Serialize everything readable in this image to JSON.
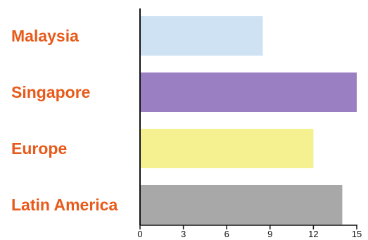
{
  "chart_data": {
    "type": "bar",
    "orientation": "horizontal",
    "categories": [
      "Malaysia",
      "Singapore",
      "Europe",
      "Latin America"
    ],
    "values": [
      8.5,
      15,
      12,
      14
    ],
    "bar_colors": [
      "#cfe2f3",
      "#9b7fc3",
      "#f5f090",
      "#a8a8a8"
    ],
    "label_color": "#e85a1a",
    "xlim": [
      0,
      15
    ],
    "xticks": [
      0,
      3,
      6,
      9,
      12,
      15
    ],
    "grid": false,
    "title": "",
    "xlabel": "",
    "ylabel": ""
  }
}
